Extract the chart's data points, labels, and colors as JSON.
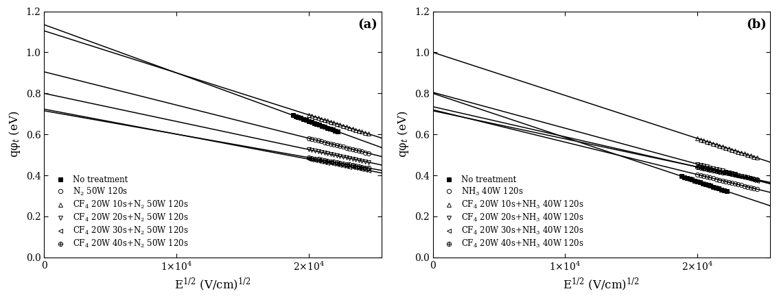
{
  "panel_a": {
    "label": "(a)",
    "ylabel": "qφ$_t$ (eV)",
    "xlabel": "E$^{1/2}$ (V/cm)$^{1/2}$",
    "xlim": [
      0,
      25500
    ],
    "ylim": [
      0.0,
      1.2
    ],
    "lines": [
      {
        "intercept": 1.135,
        "slope": -2.35e-05,
        "label": "No treatment",
        "marker": "s",
        "markersize": 4.5,
        "filled": true,
        "x_data_start": 18800,
        "x_data_end": 22200,
        "n_pts": 18
      },
      {
        "intercept": 0.905,
        "slope": -1.62e-05,
        "label": "N$_2$ 50W 120s",
        "marker": "o",
        "markersize": 4.5,
        "filled": false,
        "x_data_start": 20000,
        "x_data_end": 24500,
        "n_pts": 20
      },
      {
        "intercept": 1.105,
        "slope": -2.05e-05,
        "label": "CF$_4$ 20W 10s+N$_2$ 50W 120s",
        "marker": "^",
        "markersize": 4.5,
        "filled": false,
        "x_data_start": 20000,
        "x_data_end": 24500,
        "n_pts": 20
      },
      {
        "intercept": 0.8,
        "slope": -1.37e-05,
        "label": "CF$_4$ 20W 20s+N$_2$ 50W 120s",
        "marker": "v",
        "markersize": 4.5,
        "filled": false,
        "x_data_start": 20000,
        "x_data_end": 24500,
        "n_pts": 20
      },
      {
        "intercept": 0.723,
        "slope": -1.22e-05,
        "label": "CF$_4$ 20W 30s+N$_2$ 50W 120s",
        "marker": "<",
        "markersize": 4.5,
        "filled": false,
        "x_data_start": 20000,
        "x_data_end": 24500,
        "n_pts": 20
      },
      {
        "intercept": 0.715,
        "slope": -1.14e-05,
        "label": "CF$_4$ 20W 40s+N$_2$ 50W 120s",
        "marker": "P",
        "markersize": 4.5,
        "filled": false,
        "x_data_start": 20000,
        "x_data_end": 24500,
        "n_pts": 20
      }
    ]
  },
  "panel_b": {
    "label": "(b)",
    "ylabel": "qφ$_t$ (eV)",
    "xlabel": "E$^{1/2}$ (V/cm)$^{1/2}$",
    "xlim": [
      0,
      25500
    ],
    "ylim": [
      0.0,
      1.2
    ],
    "lines": [
      {
        "intercept": 0.8,
        "slope": -2.15e-05,
        "label": "No treatment",
        "marker": "s",
        "markersize": 4.5,
        "filled": true,
        "x_data_start": 18800,
        "x_data_end": 22200,
        "n_pts": 18
      },
      {
        "intercept": 0.72,
        "slope": -1.58e-05,
        "label": "NH$_3$ 40W 120s",
        "marker": "o",
        "markersize": 4.5,
        "filled": false,
        "x_data_start": 20000,
        "x_data_end": 24500,
        "n_pts": 20
      },
      {
        "intercept": 1.0,
        "slope": -2.1e-05,
        "label": "CF$_4$ 20W 10s+NH$_3$ 40W 120s",
        "marker": "^",
        "markersize": 4.5,
        "filled": false,
        "x_data_start": 20000,
        "x_data_end": 24500,
        "n_pts": 20
      },
      {
        "intercept": 0.805,
        "slope": -1.75e-05,
        "label": "CF$_4$ 20W 20s+NH$_3$ 40W 120s",
        "marker": "v",
        "markersize": 4.5,
        "filled": false,
        "x_data_start": 20000,
        "x_data_end": 24500,
        "n_pts": 20
      },
      {
        "intercept": 0.735,
        "slope": -1.47e-05,
        "label": "CF$_4$ 20W 30s+NH$_3$ 40W 120s",
        "marker": "<",
        "markersize": 4.5,
        "filled": false,
        "x_data_start": 20000,
        "x_data_end": 24500,
        "n_pts": 20
      },
      {
        "intercept": 0.715,
        "slope": -1.37e-05,
        "label": "CF$_4$ 20W 40s+NH$_3$ 40W 120s",
        "marker": "P",
        "markersize": 4.5,
        "filled": false,
        "x_data_start": 20000,
        "x_data_end": 24500,
        "n_pts": 20
      }
    ]
  },
  "line_color": "#000000",
  "line_width": 1.1,
  "marker_color": "#000000",
  "tick_fontsize": 10,
  "label_fontsize": 12,
  "legend_fontsize": 8.5,
  "panel_label_fontsize": 13
}
